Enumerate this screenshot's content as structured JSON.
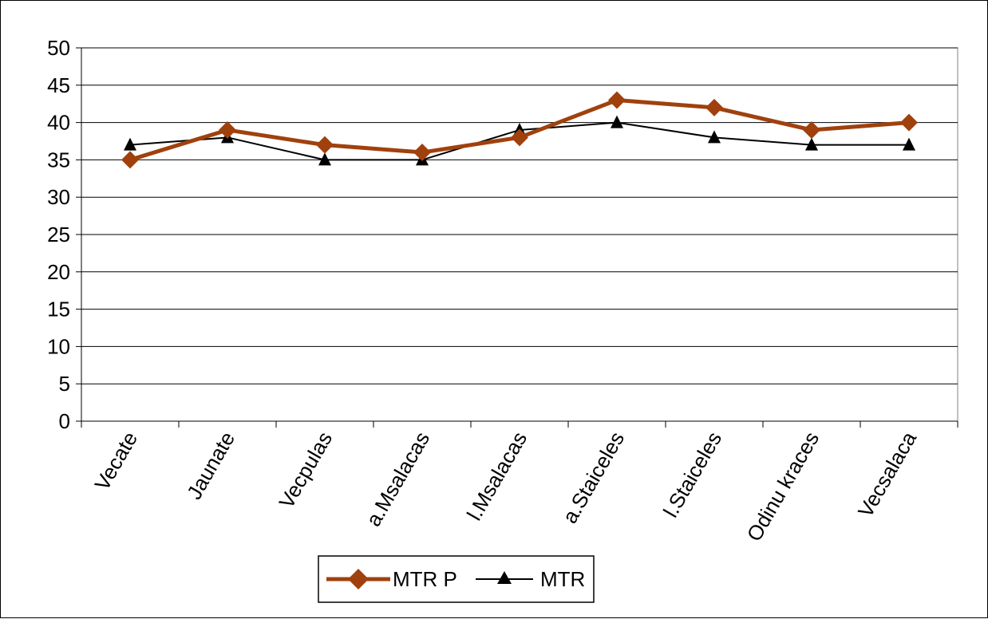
{
  "chart_data": {
    "type": "line",
    "title": "",
    "xlabel": "",
    "ylabel": "",
    "categories": [
      "Vecate",
      "Jaunate",
      "Vecpulas",
      "a.Msalacas",
      "l.Msalacas",
      "a.Staiceles",
      "l.Staiceles",
      "Odinu kraces",
      "Vecsalaca"
    ],
    "ylim": [
      0,
      50
    ],
    "yticks": [
      0,
      5,
      10,
      15,
      20,
      25,
      30,
      35,
      40,
      45,
      50
    ],
    "grid": true,
    "legend_position": "bottom",
    "series": [
      {
        "name": "MTR P",
        "values": [
          35,
          39,
          37,
          36,
          38,
          43,
          42,
          39,
          40
        ],
        "color": "#A0410D",
        "marker": "diamond"
      },
      {
        "name": "MTR",
        "values": [
          37,
          38,
          35,
          35,
          39,
          40,
          38,
          37,
          37
        ],
        "color": "#000000",
        "marker": "triangle"
      }
    ]
  }
}
